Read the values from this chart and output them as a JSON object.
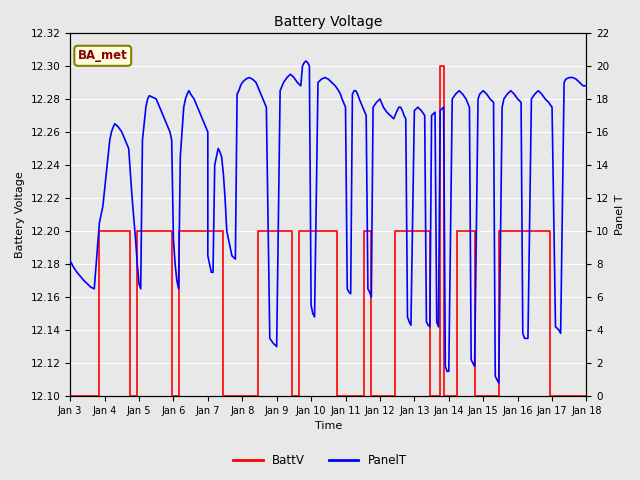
{
  "title": "Battery Voltage",
  "xlabel": "Time",
  "ylabel_left": "Battery Voltage",
  "ylabel_right": "Panel T",
  "annotation_text": "BA_met",
  "ylim_left": [
    12.1,
    12.32
  ],
  "ylim_right": [
    0,
    22
  ],
  "yticks_left": [
    12.1,
    12.12,
    12.14,
    12.16,
    12.18,
    12.2,
    12.22,
    12.24,
    12.26,
    12.28,
    12.3,
    12.32
  ],
  "yticks_right": [
    0,
    2,
    4,
    6,
    8,
    10,
    12,
    14,
    16,
    18,
    20,
    22
  ],
  "xtick_labels": [
    "Jan 3",
    "Jan 4",
    "Jan 5",
    "Jan 6",
    "Jan 7",
    "Jan 8",
    "Jan 9",
    "Jan 10",
    "Jan 11",
    "Jan 12",
    "Jan 13",
    "Jan 14",
    "Jan 15",
    "Jan 16",
    "Jan 17",
    "Jan 18"
  ],
  "background_color": "#e8e8e8",
  "plot_bg_color": "#e8e8e8",
  "grid_color": "#ffffff",
  "batt_color": "#ff0000",
  "panel_color": "#0000ff",
  "legend_batt": "BattV",
  "legend_panel": "PanelT",
  "batt_data": [
    [
      3.0,
      12.1
    ],
    [
      3.85,
      12.1
    ],
    [
      3.85,
      12.2
    ],
    [
      4.75,
      12.2
    ],
    [
      4.75,
      12.1
    ],
    [
      4.95,
      12.1
    ],
    [
      4.95,
      12.2
    ],
    [
      5.95,
      12.2
    ],
    [
      5.95,
      12.1
    ],
    [
      6.15,
      12.1
    ],
    [
      6.15,
      12.2
    ],
    [
      7.45,
      12.2
    ],
    [
      7.45,
      12.1
    ],
    [
      8.45,
      12.1
    ],
    [
      8.45,
      12.2
    ],
    [
      9.45,
      12.2
    ],
    [
      9.45,
      12.1
    ],
    [
      9.65,
      12.1
    ],
    [
      9.65,
      12.2
    ],
    [
      10.75,
      12.2
    ],
    [
      10.75,
      12.1
    ],
    [
      11.55,
      12.1
    ],
    [
      11.55,
      12.2
    ],
    [
      11.75,
      12.2
    ],
    [
      11.75,
      12.1
    ],
    [
      12.45,
      12.1
    ],
    [
      12.45,
      12.2
    ],
    [
      13.45,
      12.2
    ],
    [
      13.45,
      12.1
    ],
    [
      13.75,
      12.1
    ],
    [
      13.75,
      12.3
    ],
    [
      13.85,
      12.3
    ],
    [
      13.85,
      12.1
    ],
    [
      14.25,
      12.1
    ],
    [
      14.25,
      12.2
    ],
    [
      14.75,
      12.2
    ],
    [
      14.75,
      12.1
    ],
    [
      15.45,
      12.1
    ],
    [
      15.45,
      12.2
    ],
    [
      16.95,
      12.2
    ],
    [
      16.95,
      12.1
    ],
    [
      18.0,
      12.1
    ]
  ],
  "panel_data": [
    [
      3.0,
      8.2
    ],
    [
      3.05,
      8.0
    ],
    [
      3.1,
      7.8
    ],
    [
      3.2,
      7.5
    ],
    [
      3.4,
      7.0
    ],
    [
      3.5,
      6.8
    ],
    [
      3.6,
      6.6
    ],
    [
      3.7,
      6.5
    ],
    [
      3.85,
      10.5
    ],
    [
      3.95,
      11.5
    ],
    [
      4.05,
      13.5
    ],
    [
      4.1,
      14.5
    ],
    [
      4.15,
      15.5
    ],
    [
      4.2,
      16.0
    ],
    [
      4.25,
      16.3
    ],
    [
      4.3,
      16.5
    ],
    [
      4.4,
      16.3
    ],
    [
      4.5,
      16.0
    ],
    [
      4.6,
      15.5
    ],
    [
      4.7,
      15.0
    ],
    [
      4.8,
      12.0
    ],
    [
      4.9,
      9.5
    ],
    [
      4.95,
      8.0
    ],
    [
      5.0,
      6.8
    ],
    [
      5.05,
      6.5
    ],
    [
      5.1,
      15.5
    ],
    [
      5.15,
      16.5
    ],
    [
      5.2,
      17.5
    ],
    [
      5.25,
      18.0
    ],
    [
      5.3,
      18.2
    ],
    [
      5.4,
      18.1
    ],
    [
      5.5,
      18.0
    ],
    [
      5.6,
      17.5
    ],
    [
      5.7,
      17.0
    ],
    [
      5.8,
      16.5
    ],
    [
      5.9,
      16.0
    ],
    [
      5.95,
      15.5
    ],
    [
      6.0,
      9.5
    ],
    [
      6.05,
      8.0
    ],
    [
      6.1,
      7.0
    ],
    [
      6.15,
      6.5
    ],
    [
      6.2,
      14.5
    ],
    [
      6.3,
      17.5
    ],
    [
      6.35,
      18.0
    ],
    [
      6.4,
      18.3
    ],
    [
      6.45,
      18.5
    ],
    [
      6.5,
      18.3
    ],
    [
      6.6,
      18.0
    ],
    [
      6.7,
      17.5
    ],
    [
      6.8,
      17.0
    ],
    [
      6.9,
      16.5
    ],
    [
      7.0,
      16.0
    ],
    [
      7.0,
      8.5
    ],
    [
      7.05,
      8.0
    ],
    [
      7.1,
      7.5
    ],
    [
      7.15,
      7.5
    ],
    [
      7.2,
      14.0
    ],
    [
      7.25,
      14.5
    ],
    [
      7.3,
      15.0
    ],
    [
      7.35,
      14.8
    ],
    [
      7.4,
      14.5
    ],
    [
      7.45,
      13.5
    ],
    [
      7.5,
      12.0
    ],
    [
      7.55,
      10.0
    ],
    [
      7.6,
      9.5
    ],
    [
      7.65,
      9.0
    ],
    [
      7.7,
      8.5
    ],
    [
      7.8,
      8.3
    ],
    [
      7.85,
      18.3
    ],
    [
      7.9,
      18.5
    ],
    [
      7.95,
      18.8
    ],
    [
      8.0,
      19.0
    ],
    [
      8.1,
      19.2
    ],
    [
      8.2,
      19.3
    ],
    [
      8.3,
      19.2
    ],
    [
      8.4,
      19.0
    ],
    [
      8.5,
      18.5
    ],
    [
      8.6,
      18.0
    ],
    [
      8.7,
      17.5
    ],
    [
      8.8,
      3.5
    ],
    [
      8.9,
      3.2
    ],
    [
      9.0,
      3.0
    ],
    [
      9.1,
      18.5
    ],
    [
      9.2,
      19.0
    ],
    [
      9.3,
      19.3
    ],
    [
      9.4,
      19.5
    ],
    [
      9.5,
      19.3
    ],
    [
      9.6,
      19.0
    ],
    [
      9.7,
      18.8
    ],
    [
      9.75,
      20.0
    ],
    [
      9.8,
      20.2
    ],
    [
      9.85,
      20.3
    ],
    [
      9.9,
      20.2
    ],
    [
      9.95,
      20.0
    ],
    [
      10.0,
      5.5
    ],
    [
      10.05,
      5.0
    ],
    [
      10.1,
      4.8
    ],
    [
      10.2,
      19.0
    ],
    [
      10.3,
      19.2
    ],
    [
      10.4,
      19.3
    ],
    [
      10.5,
      19.2
    ],
    [
      10.6,
      19.0
    ],
    [
      10.7,
      18.8
    ],
    [
      10.8,
      18.5
    ],
    [
      10.85,
      18.3
    ],
    [
      10.9,
      18.0
    ],
    [
      11.0,
      17.5
    ],
    [
      11.05,
      6.5
    ],
    [
      11.1,
      6.3
    ],
    [
      11.15,
      6.2
    ],
    [
      11.2,
      18.3
    ],
    [
      11.25,
      18.5
    ],
    [
      11.3,
      18.5
    ],
    [
      11.35,
      18.3
    ],
    [
      11.4,
      18.0
    ],
    [
      11.5,
      17.5
    ],
    [
      11.6,
      17.0
    ],
    [
      11.65,
      6.5
    ],
    [
      11.7,
      6.3
    ],
    [
      11.75,
      6.0
    ],
    [
      11.8,
      17.5
    ],
    [
      11.9,
      17.8
    ],
    [
      12.0,
      18.0
    ],
    [
      12.1,
      17.5
    ],
    [
      12.2,
      17.2
    ],
    [
      12.3,
      17.0
    ],
    [
      12.4,
      16.8
    ],
    [
      12.5,
      17.3
    ],
    [
      12.55,
      17.5
    ],
    [
      12.6,
      17.5
    ],
    [
      12.65,
      17.3
    ],
    [
      12.7,
      17.0
    ],
    [
      12.75,
      16.8
    ],
    [
      12.8,
      4.8
    ],
    [
      12.85,
      4.5
    ],
    [
      12.9,
      4.3
    ],
    [
      13.0,
      17.3
    ],
    [
      13.1,
      17.5
    ],
    [
      13.2,
      17.3
    ],
    [
      13.3,
      17.0
    ],
    [
      13.35,
      4.5
    ],
    [
      13.4,
      4.3
    ],
    [
      13.45,
      4.2
    ],
    [
      13.5,
      17.0
    ],
    [
      13.6,
      17.2
    ],
    [
      13.65,
      4.5
    ],
    [
      13.7,
      4.2
    ],
    [
      13.75,
      17.3
    ],
    [
      13.85,
      17.5
    ],
    [
      13.9,
      1.8
    ],
    [
      13.95,
      1.5
    ],
    [
      14.0,
      1.5
    ],
    [
      14.1,
      18.0
    ],
    [
      14.2,
      18.3
    ],
    [
      14.3,
      18.5
    ],
    [
      14.4,
      18.3
    ],
    [
      14.5,
      18.0
    ],
    [
      14.6,
      17.5
    ],
    [
      14.65,
      2.2
    ],
    [
      14.7,
      2.0
    ],
    [
      14.75,
      1.8
    ],
    [
      14.85,
      18.0
    ],
    [
      14.9,
      18.3
    ],
    [
      15.0,
      18.5
    ],
    [
      15.1,
      18.3
    ],
    [
      15.2,
      18.0
    ],
    [
      15.3,
      17.8
    ],
    [
      15.35,
      1.2
    ],
    [
      15.4,
      1.0
    ],
    [
      15.45,
      0.8
    ],
    [
      15.55,
      17.5
    ],
    [
      15.6,
      18.0
    ],
    [
      15.7,
      18.3
    ],
    [
      15.8,
      18.5
    ],
    [
      15.9,
      18.3
    ],
    [
      16.0,
      18.0
    ],
    [
      16.1,
      17.8
    ],
    [
      16.15,
      3.8
    ],
    [
      16.2,
      3.5
    ],
    [
      16.3,
      3.5
    ],
    [
      16.4,
      18.0
    ],
    [
      16.5,
      18.3
    ],
    [
      16.6,
      18.5
    ],
    [
      16.7,
      18.3
    ],
    [
      16.8,
      18.0
    ],
    [
      16.9,
      17.8
    ],
    [
      17.0,
      17.5
    ],
    [
      17.1,
      4.2
    ],
    [
      17.2,
      4.0
    ],
    [
      17.25,
      3.8
    ],
    [
      17.35,
      19.0
    ],
    [
      17.4,
      19.2
    ],
    [
      17.5,
      19.3
    ],
    [
      17.6,
      19.3
    ],
    [
      17.7,
      19.2
    ],
    [
      17.8,
      19.0
    ],
    [
      17.9,
      18.8
    ],
    [
      18.0,
      18.8
    ]
  ]
}
